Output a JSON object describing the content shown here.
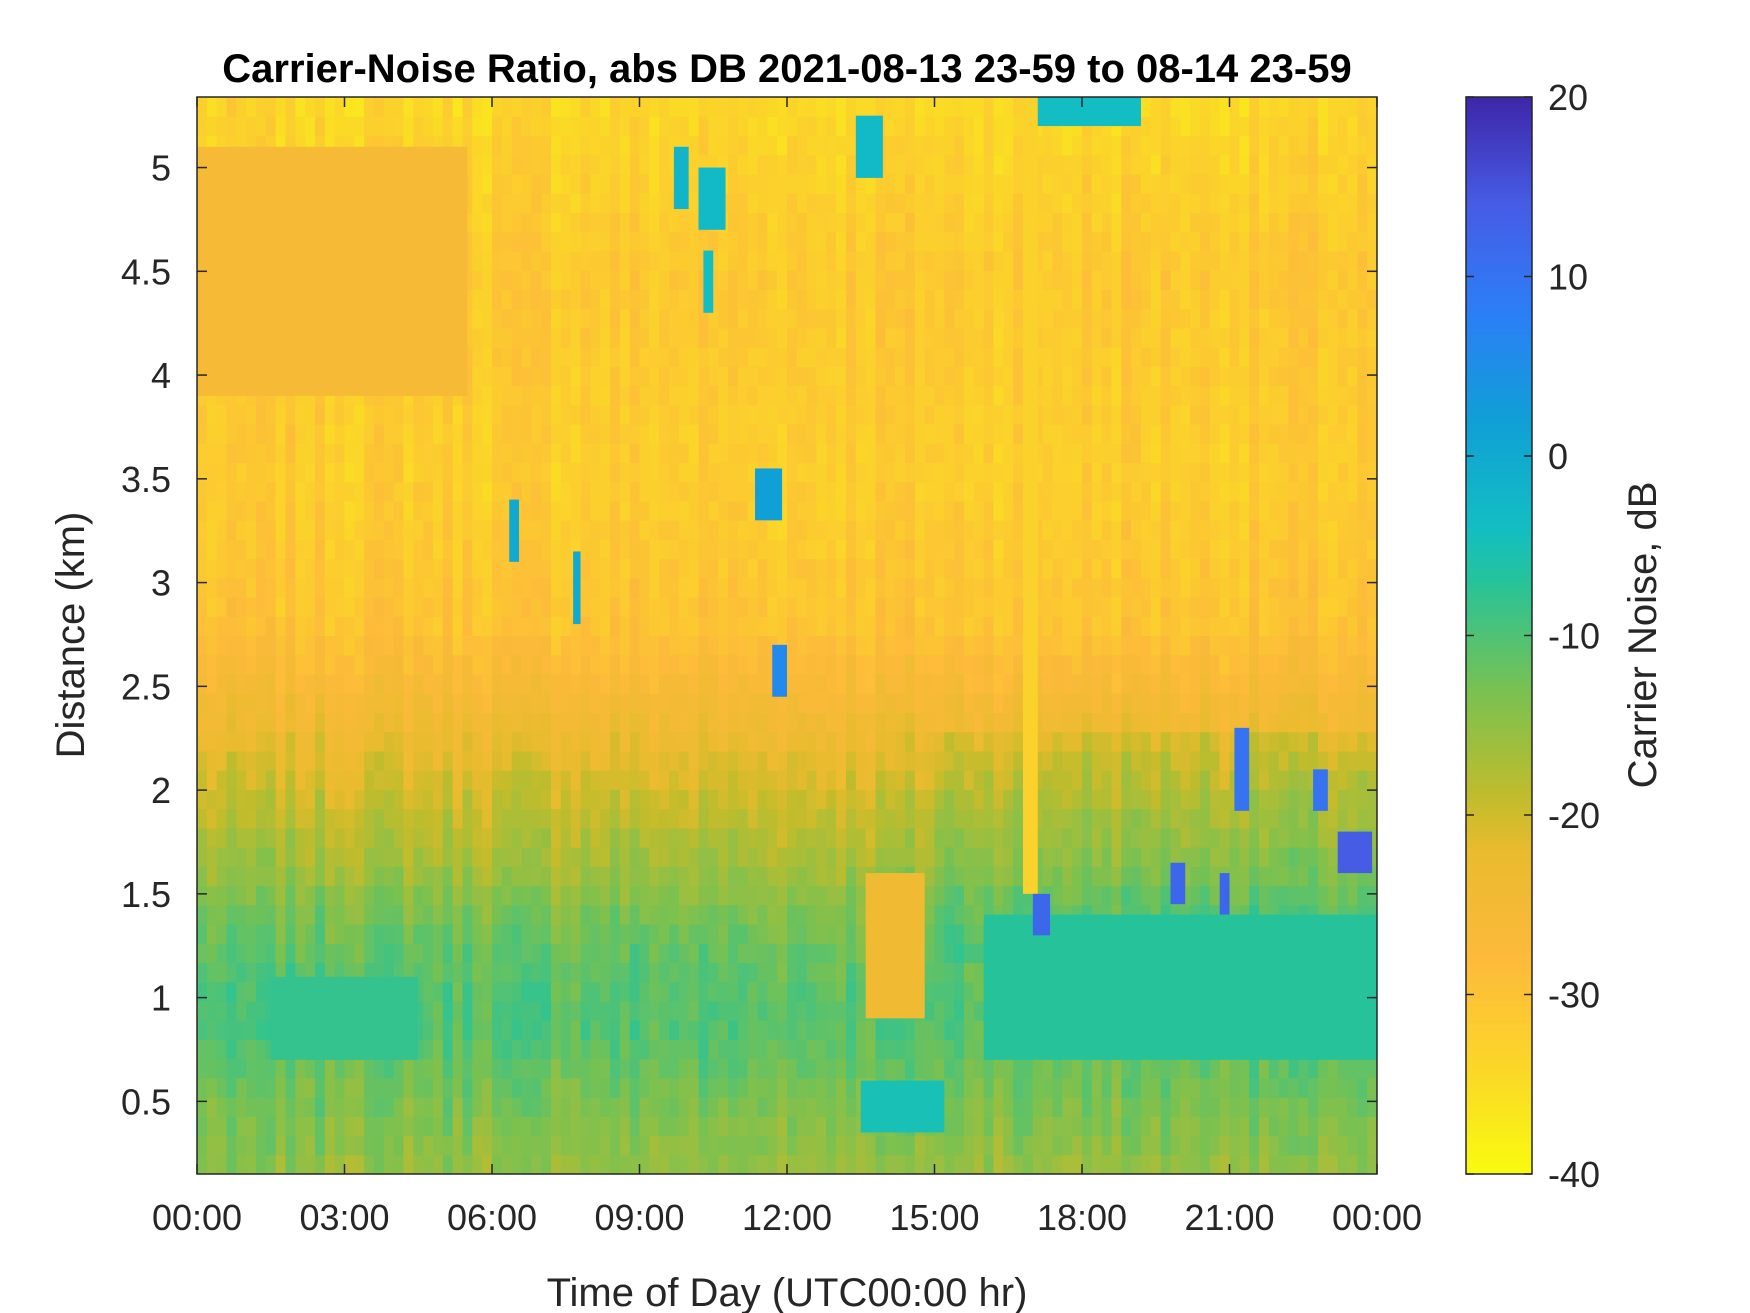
{
  "chart_data": {
    "type": "heatmap",
    "title": "Carrier-Noise Ratio, abs DB 2021-08-13 23-59 to 08-14 23-59",
    "xlabel": "Time of Day (UTC00:00 hr)",
    "ylabel": "Distance (km)",
    "x_ticks": [
      {
        "hours": 0,
        "label": "00:00"
      },
      {
        "hours": 3,
        "label": "03:00"
      },
      {
        "hours": 6,
        "label": "06:00"
      },
      {
        "hours": 9,
        "label": "09:00"
      },
      {
        "hours": 12,
        "label": "12:00"
      },
      {
        "hours": 15,
        "label": "15:00"
      },
      {
        "hours": 18,
        "label": "18:00"
      },
      {
        "hours": 21,
        "label": "21:00"
      },
      {
        "hours": 24,
        "label": "00:00"
      }
    ],
    "xlim_hours": [
      0,
      24
    ],
    "y_ticks": [
      {
        "value": 0.5,
        "label": "0.5"
      },
      {
        "value": 1,
        "label": "1"
      },
      {
        "value": 1.5,
        "label": "1.5"
      },
      {
        "value": 2,
        "label": "2"
      },
      {
        "value": 2.5,
        "label": "2.5"
      },
      {
        "value": 3,
        "label": "3"
      },
      {
        "value": 3.5,
        "label": "3.5"
      },
      {
        "value": 4,
        "label": "4"
      },
      {
        "value": 4.5,
        "label": "4.5"
      },
      {
        "value": 5,
        "label": "5"
      }
    ],
    "ylim_km": [
      0.15,
      5.34
    ],
    "colorbar": {
      "label": "Carrier Noise, dB",
      "ticks": [
        {
          "value": 20,
          "label": "20"
        },
        {
          "value": 10,
          "label": "10"
        },
        {
          "value": 0,
          "label": "0"
        },
        {
          "value": -10,
          "label": "-10"
        },
        {
          "value": -20,
          "label": "-20"
        },
        {
          "value": -30,
          "label": "-30"
        },
        {
          "value": -40,
          "label": "-40"
        }
      ],
      "range": [
        -40,
        20
      ],
      "colormap": "parula (reversed)"
    },
    "grid": false,
    "background_field": [
      {
        "km": 0.2,
        "dB": -15
      },
      {
        "km": 0.5,
        "dB": -13
      },
      {
        "km": 0.9,
        "dB": -10
      },
      {
        "km": 1.3,
        "dB": -12
      },
      {
        "km": 1.7,
        "dB": -17
      },
      {
        "km": 2.0,
        "dB": -20
      },
      {
        "km": 2.4,
        "dB": -25
      },
      {
        "km": 2.8,
        "dB": -30
      },
      {
        "km": 3.5,
        "dB": -32
      },
      {
        "km": 4.5,
        "dB": -31
      },
      {
        "km": 5.34,
        "dB": -34
      }
    ],
    "features": [
      {
        "t0": 0.0,
        "t1": 5.5,
        "y0": 3.9,
        "y1": 5.1,
        "dB": -26
      },
      {
        "t0": 1.5,
        "t1": 4.5,
        "y0": 0.7,
        "y1": 1.1,
        "dB": -8
      },
      {
        "t0": 13.6,
        "t1": 14.8,
        "y0": 0.9,
        "y1": 1.6,
        "dB": -24
      },
      {
        "t0": 13.5,
        "t1": 15.2,
        "y0": 0.35,
        "y1": 0.6,
        "dB": -5
      },
      {
        "t0": 16.0,
        "t1": 24.0,
        "y0": 0.7,
        "y1": 1.4,
        "dB": -7
      },
      {
        "t0": 16.8,
        "t1": 17.1,
        "y0": 1.5,
        "y1": 5.34,
        "dB": -33
      },
      {
        "t0": 6.35,
        "t1": 6.55,
        "y0": 3.1,
        "y1": 3.4,
        "dB": 0
      },
      {
        "t0": 7.65,
        "t1": 7.8,
        "y0": 2.8,
        "y1": 3.15,
        "dB": 0
      },
      {
        "t0": 11.35,
        "t1": 11.9,
        "y0": 3.3,
        "y1": 3.55,
        "dB": 2
      },
      {
        "t0": 11.7,
        "t1": 12.0,
        "y0": 2.45,
        "y1": 2.7,
        "dB": 6
      },
      {
        "t0": 13.4,
        "t1": 13.95,
        "y0": 4.95,
        "y1": 5.25,
        "dB": -3
      },
      {
        "t0": 10.2,
        "t1": 10.75,
        "y0": 4.7,
        "y1": 5.0,
        "dB": -3
      },
      {
        "t0": 9.7,
        "t1": 10.0,
        "y0": 4.8,
        "y1": 5.1,
        "dB": -2
      },
      {
        "t0": 10.3,
        "t1": 10.5,
        "y0": 4.3,
        "y1": 4.6,
        "dB": -4
      },
      {
        "t0": 17.0,
        "t1": 17.35,
        "y0": 1.3,
        "y1": 1.5,
        "dB": 12
      },
      {
        "t0": 19.8,
        "t1": 20.1,
        "y0": 1.45,
        "y1": 1.65,
        "dB": 12
      },
      {
        "t0": 20.8,
        "t1": 21.0,
        "y0": 1.4,
        "y1": 1.6,
        "dB": 12
      },
      {
        "t0": 23.2,
        "t1": 23.9,
        "y0": 1.6,
        "y1": 1.8,
        "dB": 14
      },
      {
        "t0": 21.1,
        "t1": 21.4,
        "y0": 1.9,
        "y1": 2.3,
        "dB": 10
      },
      {
        "t0": 22.7,
        "t1": 23.0,
        "y0": 1.9,
        "y1": 2.1,
        "dB": 10
      },
      {
        "t0": 17.1,
        "t1": 19.2,
        "y0": 5.2,
        "y1": 5.34,
        "dB": -4
      }
    ]
  }
}
